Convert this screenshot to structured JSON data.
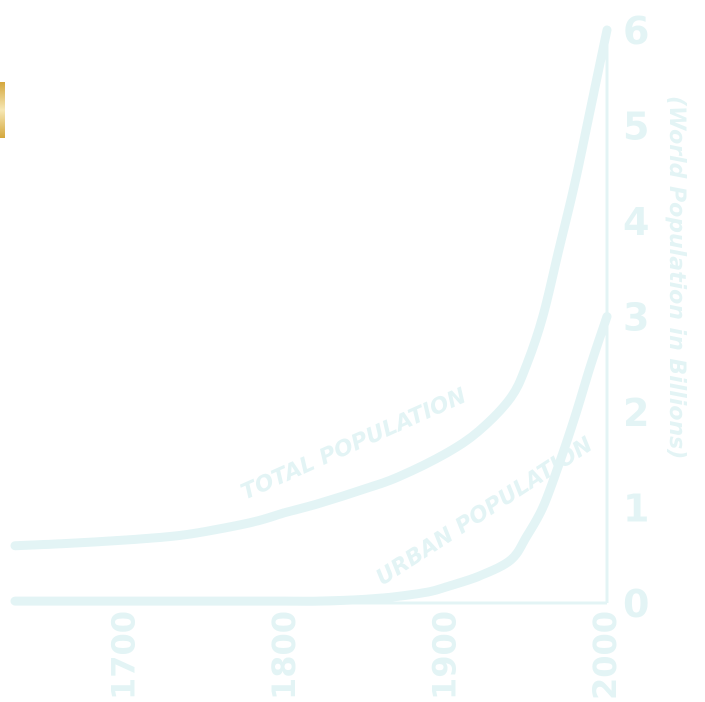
{
  "colors": {
    "curve": "#e3f4f5",
    "text": "#e3f4f5",
    "fragment": "#d4a73c"
  },
  "chart_data": {
    "type": "line",
    "title": "",
    "xlabel": "",
    "ylabel": "(World Population in  Billions)",
    "xlim": [
      1631,
      2000
    ],
    "ylim": [
      0,
      6
    ],
    "grid": false,
    "y_ticks": [
      "0",
      "1",
      "2",
      "3",
      "4",
      "5",
      "6"
    ],
    "x_ticks": [
      "1700",
      "1800",
      "1900",
      "2000"
    ],
    "series": [
      {
        "name": "TOTAL POPULATION",
        "x": [
          1631,
          1660,
          1700,
          1730,
          1750,
          1780,
          1800,
          1820,
          1850,
          1870,
          1900,
          1920,
          1940,
          1950,
          1960,
          1970,
          1980,
          1990,
          2000
        ],
        "y": [
          0.6,
          0.62,
          0.66,
          0.7,
          0.75,
          0.85,
          0.95,
          1.04,
          1.2,
          1.32,
          1.57,
          1.8,
          2.15,
          2.5,
          3.0,
          3.7,
          4.4,
          5.2,
          6.0
        ]
      },
      {
        "name": "URBAN POPULATION",
        "x": [
          1631,
          1700,
          1800,
          1820,
          1850,
          1870,
          1890,
          1900,
          1920,
          1940,
          1950,
          1960,
          1970,
          1980,
          1990,
          2000
        ],
        "y": [
          0.02,
          0.02,
          0.02,
          0.02,
          0.04,
          0.07,
          0.12,
          0.17,
          0.28,
          0.45,
          0.7,
          1.0,
          1.45,
          1.95,
          2.5,
          3.0
        ]
      }
    ]
  }
}
